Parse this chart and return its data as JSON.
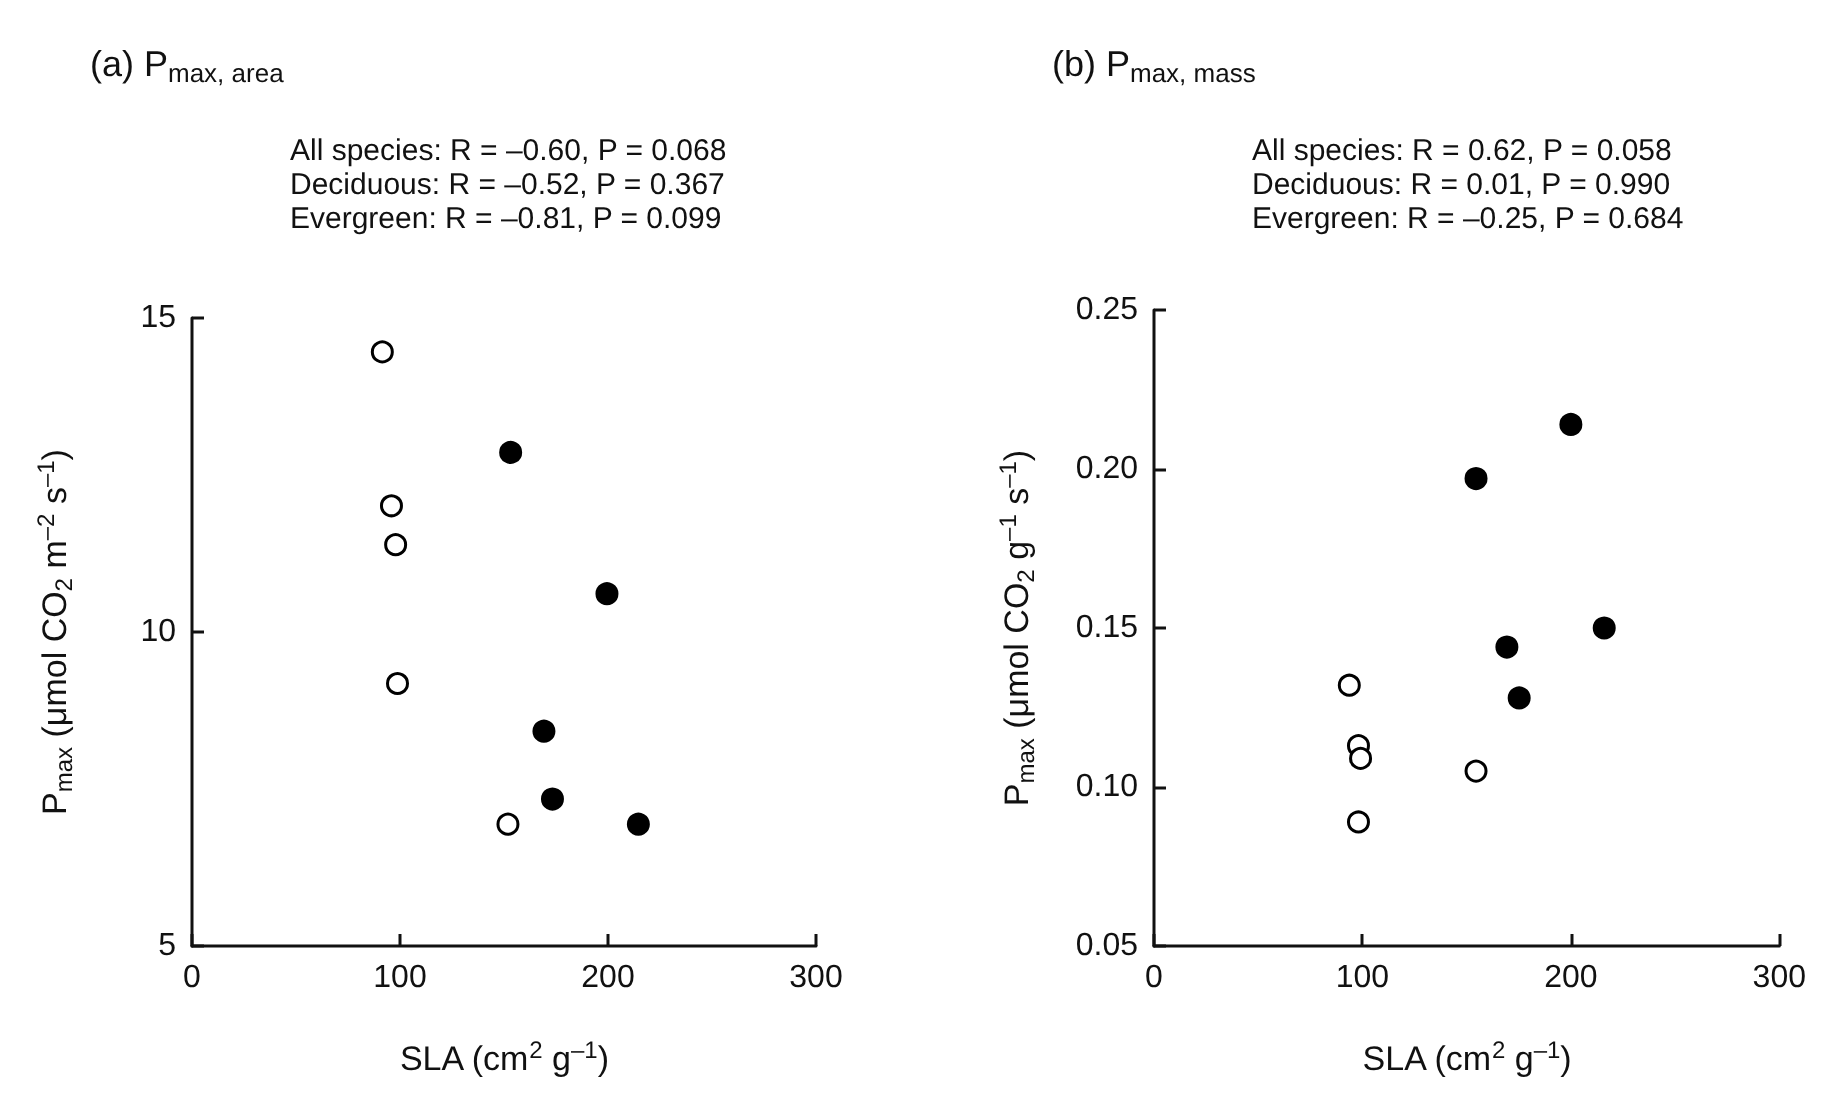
{
  "chart_data": [
    {
      "type": "scatter",
      "title": "(a) P$_{max, area}$",
      "annotations": [
        "All species: R = –0.60, P = 0.068",
        "Deciduous: R = –0.52, P = 0.367",
        "Evergreen: R = –0.81, P = 0.099"
      ],
      "xlabel": "SLA (cm$^{2}$ g$^{–1}$)",
      "ylabel": "P$_{max}$ (μmol CO$_{2}$ m$^{–2}$ s$^{–1}$)",
      "xlim": [
        0,
        300
      ],
      "xticks": [
        0,
        100,
        200,
        300
      ],
      "ylim": [
        5,
        15
      ],
      "yticks": [
        5,
        10,
        15
      ],
      "marker": "circle",
      "series": [
        {
          "color": "#ffffff",
          "x": [
            91.5,
            95.9,
            97.9,
            98.8,
            151.9
          ],
          "values": [
            14.46,
            12.01,
            11.39,
            9.18,
            6.94
          ]
        },
        {
          "color": "#000000",
          "x": [
            153.2,
            199.5,
            169.2,
            173.3,
            214.6
          ],
          "values": [
            12.86,
            10.61,
            8.42,
            7.34,
            6.94
          ]
        }
      ]
    },
    {
      "type": "scatter",
      "title": "(b) P$_{max, mass}$",
      "annotations": [
        "All species: R = 0.62, P = 0.058",
        "Deciduous: R = 0.01, P = 0.990",
        "Evergreen: R = –0.25, P = 0.684"
      ],
      "xlabel": "SLA (cm$^{2}$ g$^{–1}$)",
      "ylabel": "P$_{max}$ (μmol CO$_{2}$ g$^{–1}$ s$^{–1}$)",
      "xlim": [
        0,
        300
      ],
      "xticks": [
        0,
        100,
        200,
        300
      ],
      "ylim": [
        0.05,
        0.25
      ],
      "yticks": [
        0.05,
        {
          "value": 0.1,
          "label": "0.10"
        },
        0.15,
        {
          "value": 0.2,
          "label": "0.20"
        },
        0.25
      ],
      "marker": "circle",
      "series": [
        {
          "color": "#ffffff",
          "x": [
            93.7,
            98.1,
            99.1,
            98.1,
            154.5
          ],
          "values": [
            0.132,
            0.113,
            0.109,
            0.089,
            0.105
          ]
        },
        {
          "color": "#000000",
          "x": [
            154.5,
            200,
            169.3,
            175.2,
            216
          ],
          "values": [
            0.197,
            0.214,
            0.144,
            0.128,
            0.15
          ]
        }
      ]
    }
  ]
}
